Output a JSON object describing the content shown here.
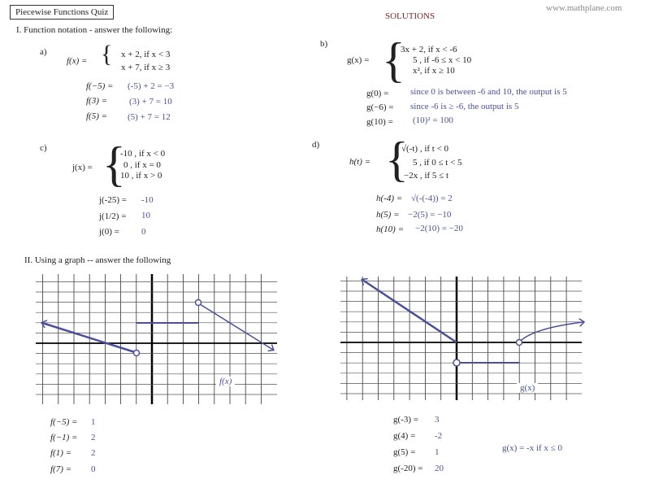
{
  "header": {
    "title": "Piecewise Functions Quiz",
    "solutions": "SOLUTIONS",
    "website": "www.mathplane.com"
  },
  "section1": {
    "heading": "I.  Function notation - answer the following:",
    "a": {
      "label": "a)",
      "func": "f(x) =",
      "cases": [
        "x + 2,  if  x < 3",
        "x + 7,  if  x ≥ 3"
      ],
      "questions": [
        {
          "q": "f(−5) =",
          "a": "(-5) + 2 = −3"
        },
        {
          "q": "f(3) =",
          "a": "(3) + 7 = 10"
        },
        {
          "q": "f(5) =",
          "a": "(5) + 7 = 12"
        }
      ]
    },
    "b": {
      "label": "b)",
      "func": "g(x) =",
      "cases": [
        "3x + 2,   if       x < -6",
        "5    ,   if   -6 ≤ x < 10",
        "x², if       x ≥ 10"
      ],
      "questions": [
        {
          "q": "g(0) =",
          "a": "since 0 is between -6 and 10, the output is 5"
        },
        {
          "q": "g(−6) =",
          "a": "since -6 is ≥ -6, the output is  5"
        },
        {
          "q": "g(10) =",
          "a": "(10)² = 100"
        }
      ]
    },
    "c": {
      "label": "c)",
      "func": "j(x) =",
      "cases": [
        "-10   ,  if  x < 0",
        "0    ,  if  x = 0",
        "10    ,  if  x > 0"
      ],
      "questions": [
        {
          "q": "j(-25) =",
          "a": "-10"
        },
        {
          "q": "j(1/2) =",
          "a": "10"
        },
        {
          "q": "j(0) =",
          "a": "0"
        }
      ]
    },
    "d": {
      "label": "d)",
      "func": "h(t) =",
      "cases": [
        "√(-t)   ,  if   t < 0",
        "5      ,  if   0 ≤  t  <  5",
        "−2x  ,   if     5 ≤  t"
      ],
      "questions": [
        {
          "q": "h(-4) =",
          "a": "√(-(-4))  =  2"
        },
        {
          "q": "h(5) =",
          "a": "−2(5) = −10"
        },
        {
          "q": "h(10) =",
          "a": "−2(10) = −20"
        }
      ]
    }
  },
  "section2": {
    "heading": "II.  Using a graph -- answer the following",
    "f_graph": {
      "label": "f(x)",
      "color": "#4a4f9a",
      "questions": [
        {
          "q": "f(−5) =",
          "a": "1"
        },
        {
          "q": "f(−1) =",
          "a": "2"
        },
        {
          "q": "f(1) =",
          "a": "2"
        },
        {
          "q": "f(7) =",
          "a": "0"
        }
      ]
    },
    "g_graph": {
      "label": "g(x)",
      "color": "#4a4f9a",
      "questions": [
        {
          "q": "g(-3) =",
          "a": "3"
        },
        {
          "q": "g(4) =",
          "a": "-2"
        },
        {
          "q": "g(5) =",
          "a": "1"
        },
        {
          "q": "g(-20) =",
          "a": "20"
        }
      ],
      "note": "g(x) = -x    if  x ≤ 0"
    }
  }
}
